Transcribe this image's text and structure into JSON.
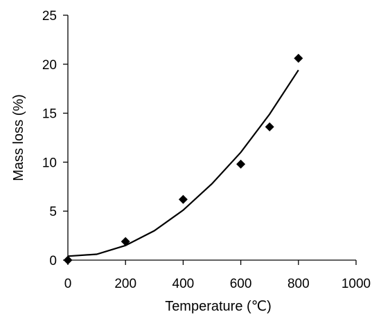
{
  "chart_data": {
    "type": "scatter",
    "xlabel": "Temperature (℃)",
    "ylabel": "Mass loss (%)",
    "xlim": [
      0,
      1000
    ],
    "ylim": [
      0,
      25
    ],
    "x_ticks": [
      0,
      200,
      400,
      600,
      800,
      1000
    ],
    "y_ticks": [
      0,
      5,
      10,
      15,
      20,
      25
    ],
    "grid": false,
    "legend": "none",
    "series": [
      {
        "marker": "diamond",
        "color": "#000000",
        "points": [
          {
            "x": 0,
            "y": 0.0
          },
          {
            "x": 200,
            "y": 1.9
          },
          {
            "x": 400,
            "y": 6.2
          },
          {
            "x": 600,
            "y": 9.8
          },
          {
            "x": 700,
            "y": 13.6
          },
          {
            "x": 800,
            "y": 20.6
          }
        ]
      }
    ],
    "trendline": {
      "type": "polynomial",
      "color": "#000000",
      "points": [
        {
          "x": 0,
          "y": 0.4
        },
        {
          "x": 100,
          "y": 0.6
        },
        {
          "x": 200,
          "y": 1.5
        },
        {
          "x": 300,
          "y": 3.0
        },
        {
          "x": 400,
          "y": 5.1
        },
        {
          "x": 500,
          "y": 7.8
        },
        {
          "x": 600,
          "y": 11.0
        },
        {
          "x": 700,
          "y": 14.9
        },
        {
          "x": 800,
          "y": 19.4
        }
      ]
    }
  }
}
